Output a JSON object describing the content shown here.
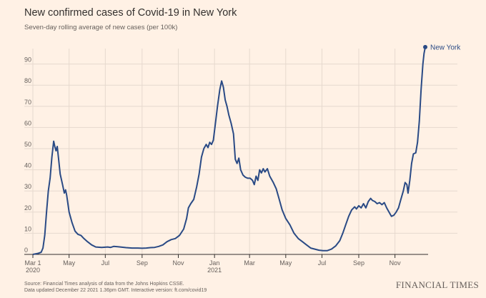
{
  "title": "New confirmed cases of Covid-19 in New York",
  "subtitle": "Seven-day rolling average of new cases (per 100k)",
  "source_line1": "Source: Financial Times analysis of data from the Johns Hopkins CSSE.",
  "source_line2": "Data updated December 22 2021 1.36pm GMT. Interactive version: ft.com/covid19",
  "brand": "FINANCIAL TIMES",
  "colors": {
    "line": "#2a4a85",
    "background": "#fff1e5",
    "grid": "#e6d9ce",
    "axis": "#33302e"
  },
  "chart_data": {
    "type": "line",
    "title": "New confirmed cases of Covid-19 in New York",
    "subtitle": "Seven-day rolling average of new cases (per 100k)",
    "xlabel": "",
    "ylabel": "",
    "ylim": [
      0,
      100
    ],
    "xlim": [
      "2020-03-01",
      "2021-12-22"
    ],
    "yticks": [
      0,
      10,
      20,
      30,
      40,
      50,
      60,
      70,
      80,
      90
    ],
    "xticks": [
      {
        "date": "2020-03-01",
        "label": "Mar 1",
        "sublabel": "2020"
      },
      {
        "date": "2020-05-01",
        "label": "May",
        "sublabel": ""
      },
      {
        "date": "2020-07-01",
        "label": "Jul",
        "sublabel": ""
      },
      {
        "date": "2020-09-01",
        "label": "Sep",
        "sublabel": ""
      },
      {
        "date": "2020-11-01",
        "label": "Nov",
        "sublabel": ""
      },
      {
        "date": "2021-01-01",
        "label": "Jan",
        "sublabel": "2021"
      },
      {
        "date": "2021-03-01",
        "label": "Mar",
        "sublabel": ""
      },
      {
        "date": "2021-05-01",
        "label": "May",
        "sublabel": ""
      },
      {
        "date": "2021-07-01",
        "label": "Jul",
        "sublabel": ""
      },
      {
        "date": "2021-09-01",
        "label": "Sep",
        "sublabel": ""
      },
      {
        "date": "2021-11-01",
        "label": "Nov",
        "sublabel": ""
      }
    ],
    "grid": true,
    "series": [
      {
        "name": "New York",
        "points": [
          [
            "2020-03-01",
            0
          ],
          [
            "2020-03-10",
            0.5
          ],
          [
            "2020-03-15",
            1
          ],
          [
            "2020-03-18",
            3
          ],
          [
            "2020-03-21",
            9
          ],
          [
            "2020-03-24",
            20
          ],
          [
            "2020-03-27",
            30
          ],
          [
            "2020-03-30",
            36
          ],
          [
            "2020-04-02",
            46
          ],
          [
            "2020-04-05",
            53.5
          ],
          [
            "2020-04-07",
            51
          ],
          [
            "2020-04-09",
            49
          ],
          [
            "2020-04-11",
            51
          ],
          [
            "2020-04-13",
            46
          ],
          [
            "2020-04-16",
            38
          ],
          [
            "2020-04-20",
            33
          ],
          [
            "2020-04-23",
            29
          ],
          [
            "2020-04-25",
            30.5
          ],
          [
            "2020-04-27",
            28
          ],
          [
            "2020-05-01",
            20
          ],
          [
            "2020-05-06",
            15
          ],
          [
            "2020-05-11",
            11
          ],
          [
            "2020-05-16",
            9.5
          ],
          [
            "2020-05-21",
            9
          ],
          [
            "2020-05-26",
            7.5
          ],
          [
            "2020-06-01",
            6
          ],
          [
            "2020-06-08",
            4.5
          ],
          [
            "2020-06-15",
            3.5
          ],
          [
            "2020-06-25",
            3.3
          ],
          [
            "2020-07-05",
            3.5
          ],
          [
            "2020-07-10",
            3.3
          ],
          [
            "2020-07-15",
            3.8
          ],
          [
            "2020-07-22",
            3.6
          ],
          [
            "2020-07-29",
            3.4
          ],
          [
            "2020-08-05",
            3.2
          ],
          [
            "2020-08-15",
            3
          ],
          [
            "2020-08-25",
            3
          ],
          [
            "2020-09-01",
            2.9
          ],
          [
            "2020-09-08",
            3
          ],
          [
            "2020-09-15",
            3.2
          ],
          [
            "2020-09-22",
            3.3
          ],
          [
            "2020-09-29",
            3.8
          ],
          [
            "2020-10-06",
            4.5
          ],
          [
            "2020-10-13",
            6
          ],
          [
            "2020-10-20",
            7
          ],
          [
            "2020-10-27",
            7.5
          ],
          [
            "2020-11-03",
            9
          ],
          [
            "2020-11-10",
            12
          ],
          [
            "2020-11-15",
            17
          ],
          [
            "2020-11-18",
            22
          ],
          [
            "2020-11-22",
            24
          ],
          [
            "2020-11-27",
            26
          ],
          [
            "2020-12-02",
            32
          ],
          [
            "2020-12-06",
            38
          ],
          [
            "2020-12-10",
            46
          ],
          [
            "2020-12-14",
            50
          ],
          [
            "2020-12-18",
            52
          ],
          [
            "2020-12-21",
            50.5
          ],
          [
            "2020-12-24",
            53
          ],
          [
            "2020-12-27",
            52
          ],
          [
            "2020-12-30",
            54
          ],
          [
            "2021-01-03",
            63
          ],
          [
            "2021-01-06",
            70
          ],
          [
            "2021-01-10",
            78
          ],
          [
            "2021-01-13",
            82
          ],
          [
            "2021-01-16",
            79
          ],
          [
            "2021-01-19",
            73
          ],
          [
            "2021-01-22",
            70
          ],
          [
            "2021-01-25",
            66
          ],
          [
            "2021-01-29",
            62
          ],
          [
            "2021-02-02",
            57
          ],
          [
            "2021-02-05",
            45
          ],
          [
            "2021-02-08",
            43
          ],
          [
            "2021-02-11",
            45.5
          ],
          [
            "2021-02-14",
            40
          ],
          [
            "2021-02-18",
            37.5
          ],
          [
            "2021-02-22",
            36.5
          ],
          [
            "2021-02-26",
            36
          ],
          [
            "2021-03-02",
            36
          ],
          [
            "2021-03-06",
            35
          ],
          [
            "2021-03-09",
            33
          ],
          [
            "2021-03-12",
            37
          ],
          [
            "2021-03-15",
            35
          ],
          [
            "2021-03-18",
            40
          ],
          [
            "2021-03-21",
            38.5
          ],
          [
            "2021-03-24",
            40.5
          ],
          [
            "2021-03-27",
            39
          ],
          [
            "2021-03-31",
            40.5
          ],
          [
            "2021-04-04",
            37
          ],
          [
            "2021-04-10",
            34
          ],
          [
            "2021-04-15",
            31
          ],
          [
            "2021-04-20",
            26
          ],
          [
            "2021-04-25",
            21
          ],
          [
            "2021-05-01",
            17
          ],
          [
            "2021-05-08",
            14
          ],
          [
            "2021-05-15",
            10
          ],
          [
            "2021-05-22",
            7.5
          ],
          [
            "2021-05-29",
            6
          ],
          [
            "2021-06-05",
            4.5
          ],
          [
            "2021-06-12",
            3
          ],
          [
            "2021-06-19",
            2.5
          ],
          [
            "2021-06-26",
            2
          ],
          [
            "2021-07-03",
            1.8
          ],
          [
            "2021-07-10",
            1.8
          ],
          [
            "2021-07-17",
            2.5
          ],
          [
            "2021-07-24",
            4
          ],
          [
            "2021-07-31",
            6.5
          ],
          [
            "2021-08-05",
            10
          ],
          [
            "2021-08-10",
            14
          ],
          [
            "2021-08-15",
            18
          ],
          [
            "2021-08-20",
            21
          ],
          [
            "2021-08-25",
            22.5
          ],
          [
            "2021-08-28",
            21.5
          ],
          [
            "2021-09-01",
            23
          ],
          [
            "2021-09-05",
            22
          ],
          [
            "2021-09-09",
            24
          ],
          [
            "2021-09-13",
            22
          ],
          [
            "2021-09-17",
            25
          ],
          [
            "2021-09-21",
            26.5
          ],
          [
            "2021-09-24",
            25.5
          ],
          [
            "2021-09-28",
            25
          ],
          [
            "2021-10-02",
            24
          ],
          [
            "2021-10-06",
            24.5
          ],
          [
            "2021-10-10",
            23.5
          ],
          [
            "2021-10-14",
            24.5
          ],
          [
            "2021-10-18",
            22
          ],
          [
            "2021-10-22",
            20
          ],
          [
            "2021-10-26",
            18
          ],
          [
            "2021-10-30",
            18.5
          ],
          [
            "2021-11-03",
            20
          ],
          [
            "2021-11-07",
            22
          ],
          [
            "2021-11-11",
            26
          ],
          [
            "2021-11-15",
            30
          ],
          [
            "2021-11-18",
            34
          ],
          [
            "2021-11-21",
            33
          ],
          [
            "2021-11-23",
            29
          ],
          [
            "2021-11-26",
            35
          ],
          [
            "2021-11-29",
            43
          ],
          [
            "2021-12-02",
            47.5
          ],
          [
            "2021-12-06",
            48
          ],
          [
            "2021-12-09",
            53
          ],
          [
            "2021-12-12",
            63
          ],
          [
            "2021-12-15",
            78
          ],
          [
            "2021-12-18",
            90
          ],
          [
            "2021-12-20",
            95
          ],
          [
            "2021-12-22",
            98
          ]
        ]
      }
    ]
  }
}
